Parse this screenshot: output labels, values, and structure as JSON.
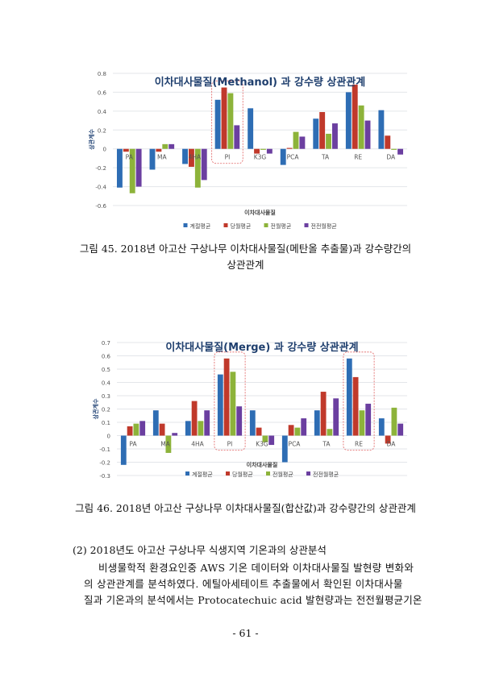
{
  "chart_data": [
    {
      "type": "bar",
      "title": "이차대사물질(Methanol)  과 강수량 상관관계",
      "xlabel": "이차대사물질",
      "ylabel": "상관계수",
      "ylim": [
        -0.6,
        0.8
      ],
      "yticks": [
        "0.8",
        "0.6",
        "0.4",
        "0.2",
        "0",
        "-0.2",
        "-0.4",
        "-0.6"
      ],
      "tickvals": [
        0.8,
        0.6,
        0.4,
        0.2,
        0,
        -0.2,
        -0.4,
        -0.6
      ],
      "categories": [
        "PA",
        "MA",
        "4HA",
        "PI",
        "K3G",
        "PCA",
        "TA",
        "RE",
        "DA"
      ],
      "highlight": [
        "PI"
      ],
      "legend_position": "bottom",
      "series": [
        {
          "name": "계절평균",
          "color": "#2e6db4",
          "values": [
            -0.41,
            -0.22,
            -0.16,
            0.52,
            0.43,
            -0.17,
            0.32,
            0.6,
            0.41
          ]
        },
        {
          "name": "당월평균",
          "color": "#c0392b",
          "values": [
            -0.03,
            -0.03,
            -0.19,
            0.65,
            -0.05,
            0.01,
            0.39,
            0.68,
            0.14
          ]
        },
        {
          "name": "전월평균",
          "color": "#8db33a",
          "values": [
            -0.47,
            0.05,
            -0.41,
            0.59,
            -0.01,
            0.18,
            0.16,
            0.46,
            -0.01
          ]
        },
        {
          "name": "전전월평균",
          "color": "#6b3fa0",
          "values": [
            -0.4,
            0.05,
            -0.33,
            0.25,
            -0.05,
            0.13,
            0.27,
            0.3,
            -0.06
          ]
        }
      ]
    },
    {
      "type": "bar",
      "title": "이차대사물질(Merge)  과 강수량 상관관계",
      "xlabel": "이차대사물질",
      "ylabel": "상관계수",
      "ylim": [
        -0.3,
        0.7
      ],
      "yticks": [
        "0.7",
        "0.6",
        "0.5",
        "0.4",
        "0.3",
        "0.2",
        "0.1",
        "0",
        "-0.1",
        "-0.2",
        "-0.3"
      ],
      "tickvals": [
        0.7,
        0.6,
        0.5,
        0.4,
        0.3,
        0.2,
        0.1,
        0,
        -0.1,
        -0.2,
        -0.3
      ],
      "categories": [
        "PA",
        "MA",
        "4HA",
        "PI",
        "K3G",
        "PCA",
        "TA",
        "RE",
        "DA"
      ],
      "highlight": [
        "PI",
        "RE"
      ],
      "legend_position": "bottom",
      "series": [
        {
          "name": "계절평균",
          "color": "#2e6db4",
          "values": [
            -0.22,
            0.19,
            0.11,
            0.46,
            0.19,
            -0.2,
            0.19,
            0.58,
            0.13
          ]
        },
        {
          "name": "당월평균",
          "color": "#c0392b",
          "values": [
            0.07,
            0.09,
            0.26,
            0.58,
            0.06,
            0.08,
            0.33,
            0.44,
            -0.06
          ]
        },
        {
          "name": "전월평균",
          "color": "#8db33a",
          "values": [
            0.09,
            -0.13,
            0.11,
            0.48,
            -0.05,
            0.06,
            0.05,
            0.19,
            0.21
          ]
        },
        {
          "name": "전전월평균",
          "color": "#6b3fa0",
          "values": [
            0.11,
            0.02,
            0.19,
            0.22,
            -0.07,
            0.13,
            0.28,
            0.24,
            0.09
          ]
        }
      ]
    }
  ],
  "captions": {
    "fig45_line1": "그림 45. 2018년 아고산 구상나무 이차대사물질(메탄올 추출물)과 강수량간의",
    "fig45_line2": "상관관계",
    "fig46": "그림 46. 2018년 아고산 구상나무 이차대사물질(합산값)과 강수량간의 상관관계"
  },
  "body": {
    "heading": "(2) 2018년도 아고산 구상나무 식생지역 기온과의 상관분석",
    "lines": [
      "비생물학적 환경요인중 AWS 기온 데이터와 이차대사물질 발현량 변화와",
      "의 상관관계를 분석하였다. 에틸아세테이트 추출물에서 확인된 이차대사물",
      "질과 기온과의 분석에서는 Protocatechuic acid 발현량과는 전전월평균기온"
    ]
  },
  "page_number": "- 61 -"
}
